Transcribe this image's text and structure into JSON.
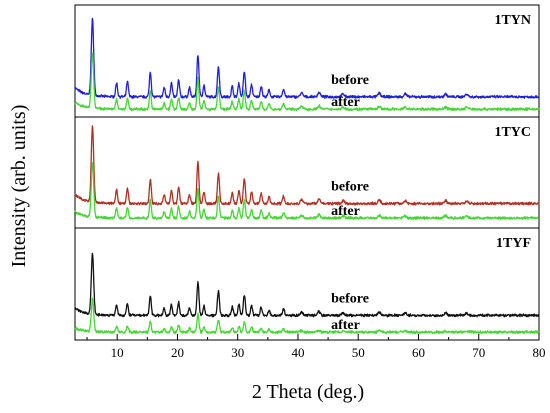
{
  "chart_data": {
    "type": "line",
    "title": "",
    "xlabel": "2 Theta (deg.)",
    "ylabel": "Intensity (arb. units)",
    "xlim": [
      3,
      80
    ],
    "xticks": [
      10,
      20,
      30,
      40,
      50,
      60,
      70,
      80
    ],
    "grid": false,
    "peaks": [
      {
        "x": 5.9,
        "h": 1.0,
        "w": 0.28
      },
      {
        "x": 9.9,
        "h": 0.18,
        "w": 0.22
      },
      {
        "x": 11.7,
        "h": 0.2,
        "w": 0.22
      },
      {
        "x": 15.5,
        "h": 0.33,
        "w": 0.22
      },
      {
        "x": 17.8,
        "h": 0.12,
        "w": 0.22
      },
      {
        "x": 19.0,
        "h": 0.18,
        "w": 0.22
      },
      {
        "x": 20.2,
        "h": 0.22,
        "w": 0.22
      },
      {
        "x": 22.0,
        "h": 0.12,
        "w": 0.22
      },
      {
        "x": 23.4,
        "h": 0.55,
        "w": 0.24
      },
      {
        "x": 24.4,
        "h": 0.15,
        "w": 0.22
      },
      {
        "x": 26.8,
        "h": 0.4,
        "w": 0.24
      },
      {
        "x": 29.1,
        "h": 0.14,
        "w": 0.22
      },
      {
        "x": 30.2,
        "h": 0.18,
        "w": 0.22
      },
      {
        "x": 31.1,
        "h": 0.33,
        "w": 0.24
      },
      {
        "x": 32.3,
        "h": 0.16,
        "w": 0.22
      },
      {
        "x": 33.9,
        "h": 0.14,
        "w": 0.22
      },
      {
        "x": 35.2,
        "h": 0.09,
        "w": 0.22
      },
      {
        "x": 37.6,
        "h": 0.1,
        "w": 0.24
      },
      {
        "x": 40.6,
        "h": 0.05,
        "w": 0.3
      },
      {
        "x": 43.5,
        "h": 0.06,
        "w": 0.3
      },
      {
        "x": 47.5,
        "h": 0.04,
        "w": 0.3
      },
      {
        "x": 53.5,
        "h": 0.05,
        "w": 0.3
      },
      {
        "x": 57.8,
        "h": 0.04,
        "w": 0.3
      },
      {
        "x": 64.5,
        "h": 0.04,
        "w": 0.3
      },
      {
        "x": 68.0,
        "h": 0.04,
        "w": 0.3
      }
    ],
    "panels": [
      {
        "label": "1TYN",
        "series": [
          {
            "name": "before",
            "color": "#1f1fd6",
            "baseline": 0.18,
            "scale": 1.0
          },
          {
            "name": "after",
            "color": "#44d632",
            "baseline": 0.07,
            "scale": 0.72
          }
        ]
      },
      {
        "label": "1TYC",
        "series": [
          {
            "name": "before",
            "color": "#b03020",
            "baseline": 0.22,
            "scale": 1.0
          },
          {
            "name": "after",
            "color": "#44d632",
            "baseline": 0.09,
            "scale": 0.72
          }
        ]
      },
      {
        "label": "1TYF",
        "series": [
          {
            "name": "before",
            "color": "#111111",
            "baseline": 0.22,
            "scale": 0.8
          },
          {
            "name": "after",
            "color": "#44d632",
            "baseline": 0.07,
            "scale": 0.42
          }
        ]
      }
    ]
  }
}
